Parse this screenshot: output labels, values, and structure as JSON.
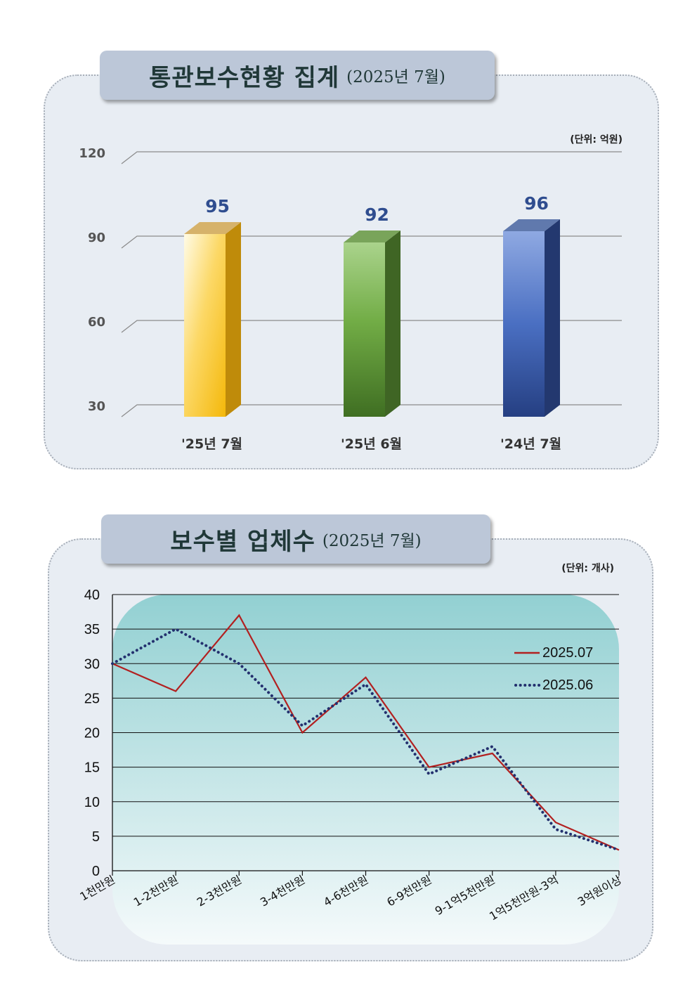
{
  "chart_data": [
    {
      "type": "bar",
      "title": "통관보수현황 집계",
      "subtitle": "(2025년 7월)",
      "unit_label": "(단위: 억원)",
      "categories": [
        "'25년 7월",
        "'25년 6월",
        "'24년 7월"
      ],
      "values": [
        95,
        92,
        96
      ],
      "value_labels": [
        "95",
        "92",
        "96"
      ],
      "yticks": [
        "30",
        "60",
        "90",
        "120"
      ],
      "ylim": [
        30,
        120
      ],
      "grid": true,
      "colors": [
        "#f6c318",
        "#65a23c",
        "#3a5fb0"
      ]
    },
    {
      "type": "line",
      "title": "보수별 업체수",
      "subtitle": "(2025년 7월)",
      "unit_label": "(단위: 개사)",
      "categories": [
        "1천만원",
        "1-2천만원",
        "2-3천만원",
        "3-4천만원",
        "4-6천만원",
        "6-9천만원",
        "9-1억5천만원",
        "1억5천만원-3억",
        "3억원이상"
      ],
      "yticks": [
        "0",
        "5",
        "10",
        "15",
        "20",
        "25",
        "30",
        "35",
        "40"
      ],
      "ylim": [
        0,
        40
      ],
      "grid": true,
      "legend_position": "top-right",
      "series": [
        {
          "name": "2025.07",
          "values": [
            30,
            26,
            37,
            20,
            28,
            15,
            17,
            7,
            3
          ],
          "color": "#b22020",
          "style": "solid"
        },
        {
          "name": "2025.06",
          "values": [
            30,
            35,
            30,
            21,
            27,
            14,
            18,
            6,
            3
          ],
          "color": "#23306e",
          "style": "dotted"
        }
      ]
    }
  ]
}
